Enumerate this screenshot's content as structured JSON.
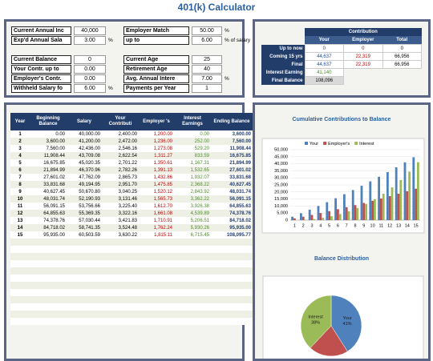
{
  "title": "401(k) Calculator",
  "inputs": {
    "left": [
      {
        "label": "Current Annual Inc",
        "value": "40,000"
      },
      {
        "label": "Exp'd Annual Sala",
        "value": "3.00",
        "unit": "%"
      },
      {
        "label": "Current Balance",
        "value": "0"
      },
      {
        "label": "Your Contr. up to",
        "value": "0.00"
      },
      {
        "label": "Employer's Contr.",
        "value": "0.00"
      },
      {
        "label": "Withheld Salary fo",
        "value": "6.00",
        "unit": "%"
      }
    ],
    "right": [
      {
        "label": "Employer Match",
        "value": "50.00",
        "unit": "%"
      },
      {
        "label": "up to",
        "value": "6.00",
        "unit": "% of salary"
      },
      {
        "label": "Current Age",
        "value": "25"
      },
      {
        "label": "Retirement Age",
        "value": "40"
      },
      {
        "label": "Avg. Annual Intere",
        "value": "7.00",
        "unit": "%"
      },
      {
        "label": "Payments per Year",
        "value": "1"
      }
    ]
  },
  "summary": {
    "header": "Contribution",
    "columns": [
      "Your",
      "Employer",
      "Total"
    ],
    "rows": [
      {
        "label": "Up to now",
        "cells": [
          "0",
          "0",
          "0"
        ]
      },
      {
        "label": "Coming 15 yrs",
        "cells": [
          "44,637",
          "22,319",
          "66,956"
        ]
      },
      {
        "label": "Final",
        "cells": [
          "44,637",
          "22,319",
          "66,956"
        ]
      },
      {
        "label": "Interest Earning",
        "cells": [
          "41,140"
        ]
      },
      {
        "label": "Final Balance",
        "cells": [
          "108,096"
        ]
      }
    ]
  },
  "table": {
    "columns": [
      "Year",
      "Beginning Balance",
      "Salary",
      "Your Contributi",
      "Employer 's",
      "Interest Earnings",
      "Ending Balance"
    ],
    "rows": [
      [
        "1",
        "0.00",
        "40,000.00",
        "2,400.00",
        "1,200.00",
        "0.00",
        "3,600.00"
      ],
      [
        "2",
        "3,600.00",
        "41,200.00",
        "2,472.00",
        "1,236.00",
        "252.00",
        "7,560.00"
      ],
      [
        "3",
        "7,560.00",
        "42,436.00",
        "2,546.16",
        "1,273.08",
        "529.20",
        "11,908.44"
      ],
      [
        "4",
        "11,908.44",
        "43,709.08",
        "2,622.54",
        "1,311.27",
        "833.59",
        "16,675.85"
      ],
      [
        "5",
        "16,675.85",
        "45,020.35",
        "2,701.22",
        "1,350.61",
        "1,167.31",
        "21,894.99"
      ],
      [
        "6",
        "21,894.99",
        "46,370.96",
        "2,782.26",
        "1,391.13",
        "1,532.65",
        "27,601.02"
      ],
      [
        "7",
        "27,601.02",
        "47,762.09",
        "2,865.73",
        "1,432.86",
        "1,932.07",
        "33,831.68"
      ],
      [
        "8",
        "33,831.68",
        "49,194.95",
        "2,951.70",
        "1,475.85",
        "2,368.22",
        "40,627.45"
      ],
      [
        "9",
        "40,627.45",
        "50,670.80",
        "3,040.25",
        "1,520.12",
        "2,843.92",
        "48,031.74"
      ],
      [
        "10",
        "48,031.74",
        "52,190.93",
        "3,131.46",
        "1,565.73",
        "3,362.22",
        "56,091.15"
      ],
      [
        "11",
        "56,091.15",
        "53,756.66",
        "3,225.40",
        "1,612.70",
        "3,926.38",
        "64,855.63"
      ],
      [
        "12",
        "64,855.63",
        "55,369.35",
        "3,322.16",
        "1,661.08",
        "4,539.89",
        "74,378.76"
      ],
      [
        "13",
        "74,378.76",
        "57,030.44",
        "3,421.83",
        "1,710.91",
        "5,206.51",
        "84,718.02"
      ],
      [
        "14",
        "84,718.02",
        "58,741.35",
        "3,524.48",
        "1,762.24",
        "5,930.26",
        "95,935.00"
      ],
      [
        "15",
        "95,935.00",
        "60,503.59",
        "3,630.22",
        "1,815.11",
        "6,715.45",
        "108,095.77"
      ]
    ]
  },
  "chart_data": [
    {
      "type": "bar",
      "title": "Cumulative Contributions to Balance",
      "categories": [
        "1",
        "2",
        "3",
        "4",
        "5",
        "6",
        "7",
        "8",
        "9",
        "10",
        "11",
        "12",
        "13",
        "14",
        "15"
      ],
      "series": [
        {
          "name": "Your",
          "color": "#4f81bd",
          "values": [
            2400,
            4872,
            7418,
            10041,
            12742,
            15524,
            18390,
            21342,
            24382,
            27513,
            30739,
            34061,
            37483,
            41007,
            44637
          ]
        },
        {
          "name": "Employer's",
          "color": "#c0504d",
          "values": [
            1200,
            2436,
            3709,
            5020,
            6371,
            7762,
            9195,
            10671,
            12191,
            13757,
            15369,
            17030,
            18741,
            20503,
            22319
          ]
        },
        {
          "name": "Interest",
          "color": "#9bbb59",
          "values": [
            0,
            252,
            781,
            1615,
            2782,
            4315,
            6247,
            8615,
            11459,
            14821,
            18748,
            23288,
            28494,
            34424,
            41140
          ]
        }
      ],
      "ylim": [
        0,
        50000
      ],
      "yticks": [
        0,
        {
          "value": 5000,
          "label": "5,000"
        },
        {
          "value": 10000,
          "label": "10,000"
        },
        {
          "value": 15000,
          "label": "15,000"
        },
        {
          "value": 20000,
          "label": "20,000"
        },
        {
          "value": 25000,
          "label": "25,000"
        },
        {
          "value": 30000,
          "label": "30,000"
        },
        {
          "value": 35000,
          "label": "35,000"
        },
        {
          "value": 40000,
          "label": "40,000"
        },
        {
          "value": 45000,
          "label": "45,000"
        },
        {
          "value": 50000,
          "label": "50,000"
        }
      ],
      "legend": "top"
    },
    {
      "type": "pie",
      "title": "Balance Distribution",
      "categories": [
        "Your",
        "Employer's",
        "Interest"
      ],
      "values": [
        41,
        21,
        38
      ],
      "value_labels": [
        "41%",
        "21%",
        "38%"
      ],
      "colors": [
        "#4f81bd",
        "#c0504d",
        "#9bbb59"
      ]
    }
  ]
}
